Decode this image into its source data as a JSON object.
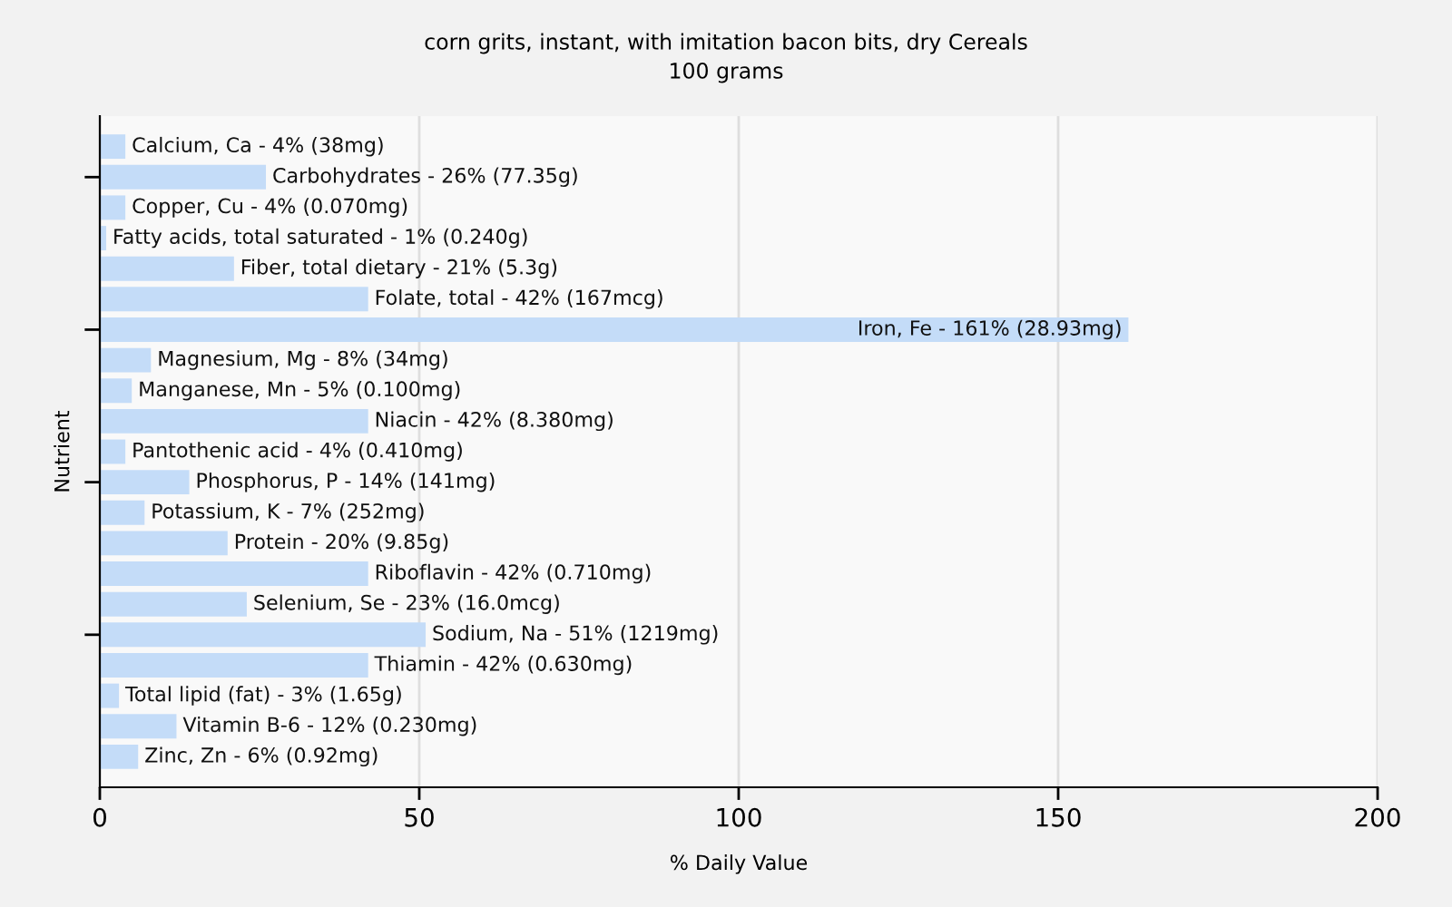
{
  "chart_data": {
    "type": "bar",
    "orientation": "horizontal",
    "title": "corn grits, instant, with imitation bacon bits, dry Cereals",
    "subtitle": "100 grams",
    "xlabel": "% Daily Value",
    "ylabel": "Nutrient",
    "categories": [
      "Calcium, Ca - 4% (38mg)",
      "Carbohydrates - 26% (77.35g)",
      "Copper, Cu - 4% (0.070mg)",
      "Fatty acids, total saturated - 1% (0.240g)",
      "Fiber, total dietary - 21% (5.3g)",
      "Folate, total - 42% (167mcg)",
      "Iron, Fe - 161% (28.93mg)",
      "Magnesium, Mg - 8% (34mg)",
      "Manganese, Mn - 5% (0.100mg)",
      "Niacin - 42% (8.380mg)",
      "Pantothenic acid - 4% (0.410mg)",
      "Phosphorus, P - 14% (141mg)",
      "Potassium, K - 7% (252mg)",
      "Protein - 20% (9.85g)",
      "Riboflavin - 42% (0.710mg)",
      "Selenium, Se - 23% (16.0mcg)",
      "Sodium, Na - 51% (1219mg)",
      "Thiamin - 42% (0.630mg)",
      "Total lipid (fat) - 3% (1.65g)",
      "Vitamin B-6 - 12% (0.230mg)",
      "Zinc, Zn - 6% (0.92mg)"
    ],
    "values": [
      4,
      26,
      4,
      1,
      21,
      42,
      161,
      8,
      5,
      42,
      4,
      14,
      7,
      20,
      42,
      23,
      51,
      42,
      3,
      12,
      6
    ],
    "color": "#c4dcf8",
    "xlim": [
      0,
      200
    ],
    "xticks": [
      0,
      50,
      100,
      150,
      200
    ],
    "tick_labels": "x",
    "grid": "x"
  }
}
